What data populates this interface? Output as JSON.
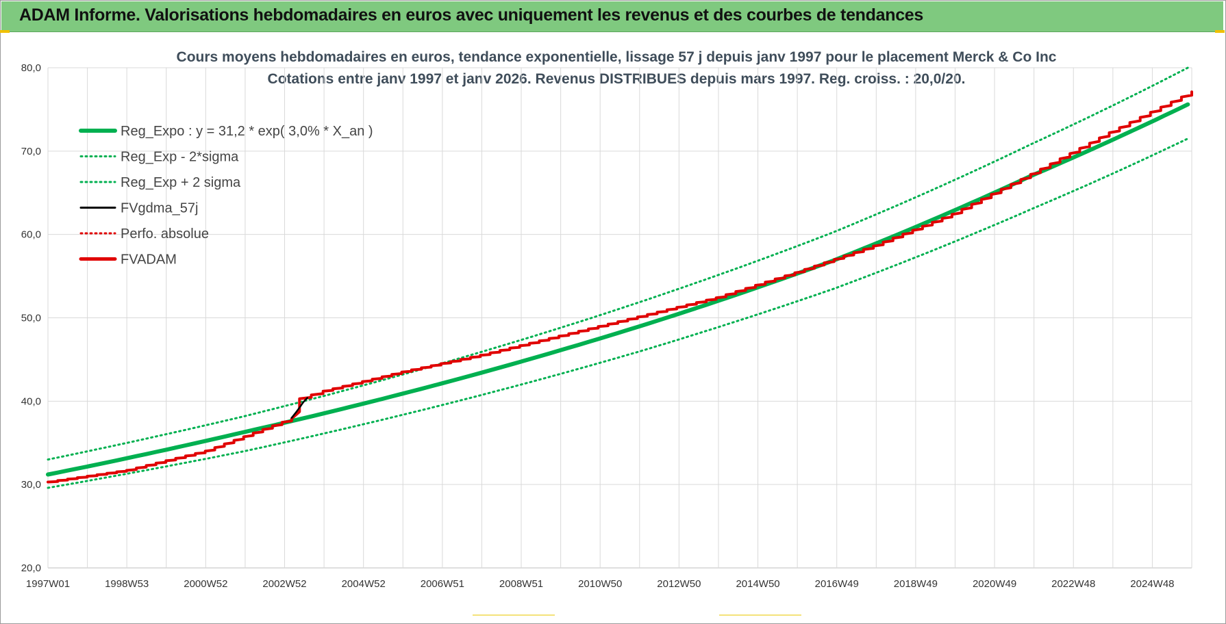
{
  "banner": {
    "title": "ADAM Informe. Valorisations hebdomadaires en euros avec uniquement les revenus et des courbes de tendances"
  },
  "colors": {
    "banner_bg": "#7fc97f",
    "green": "#00b050",
    "red": "#e00000",
    "black": "#000000",
    "grid": "#d9d9d9"
  },
  "chart_data": {
    "type": "line",
    "title_line1": "Cours moyens hebdomadaires en euros, tendance exponentielle, lissage 57 j depuis janv 1997  pour le placement Merck & Co Inc",
    "title_line2": "Cotations entre janv 1997 et janv 2026. Revenus DISTRIBUES depuis mars 1997. Reg. croiss. : 20,0/20.",
    "x_tick_labels": [
      "1997W01",
      "1998W53",
      "2000W52",
      "2002W52",
      "2004W52",
      "2006W51",
      "2008W51",
      "2010W50",
      "2012W50",
      "2014W50",
      "2016W49",
      "2018W49",
      "2020W49",
      "2022W48",
      "2024W48"
    ],
    "x_range_years": [
      1997.0,
      2026.1
    ],
    "y_tick_labels": [
      "20,0",
      "30,0",
      "40,0",
      "50,0",
      "60,0",
      "70,0",
      "80,0"
    ],
    "ylim": [
      20,
      80
    ],
    "grid": true,
    "legend_position": "top-left",
    "series": [
      {
        "name": "Reg_Expo : y = 31,2 * exp( 3,0% *  X_an )",
        "style": "solid-thick",
        "color": "#00b050",
        "points": [
          [
            1997.0,
            31.2
          ],
          [
            2002.0,
            36.3
          ],
          [
            2007.0,
            42.1
          ],
          [
            2012.0,
            48.9
          ],
          [
            2017.0,
            56.9
          ],
          [
            2022.0,
            67.0
          ],
          [
            2026.0,
            75.6
          ]
        ]
      },
      {
        "name": "Reg_Exp - 2*sigma",
        "style": "dotted",
        "color": "#00b050",
        "points": [
          [
            1997.0,
            29.6
          ],
          [
            2002.0,
            34.0
          ],
          [
            2007.0,
            39.5
          ],
          [
            2012.0,
            45.9
          ],
          [
            2017.0,
            53.5
          ],
          [
            2022.0,
            63.0
          ],
          [
            2026.0,
            71.5
          ]
        ]
      },
      {
        "name": "Reg_Exp + 2 sigma",
        "style": "dotted",
        "color": "#00b050",
        "points": [
          [
            1997.0,
            33.0
          ],
          [
            2002.0,
            38.2
          ],
          [
            2007.0,
            44.5
          ],
          [
            2012.0,
            51.8
          ],
          [
            2017.0,
            60.3
          ],
          [
            2022.0,
            70.8
          ],
          [
            2026.0,
            80.0
          ]
        ]
      },
      {
        "name": "FVgdma_57j",
        "style": "solid",
        "color": "#000000",
        "points": [
          [
            2003.2,
            38.0
          ],
          [
            2003.35,
            38.9
          ],
          [
            2003.5,
            39.9
          ],
          [
            2003.6,
            40.4
          ]
        ]
      },
      {
        "name": "Perfo. absolue",
        "style": "dotted",
        "color": "#e00000",
        "points": []
      },
      {
        "name": "FVADAM",
        "style": "solid-stepped",
        "color": "#e00000",
        "points": [
          [
            1997.0,
            30.3
          ],
          [
            1999.0,
            31.7
          ],
          [
            2001.0,
            34.0
          ],
          [
            2003.2,
            37.9
          ],
          [
            2003.4,
            40.3
          ],
          [
            2004.0,
            41.2
          ],
          [
            2006.0,
            43.5
          ],
          [
            2008.0,
            45.5
          ],
          [
            2010.0,
            47.8
          ],
          [
            2012.0,
            50.1
          ],
          [
            2014.0,
            52.4
          ],
          [
            2016.0,
            55.4
          ],
          [
            2018.0,
            58.6
          ],
          [
            2020.0,
            62.4
          ],
          [
            2022.0,
            67.2
          ],
          [
            2024.0,
            72.2
          ],
          [
            2026.1,
            77.1
          ]
        ]
      }
    ]
  }
}
